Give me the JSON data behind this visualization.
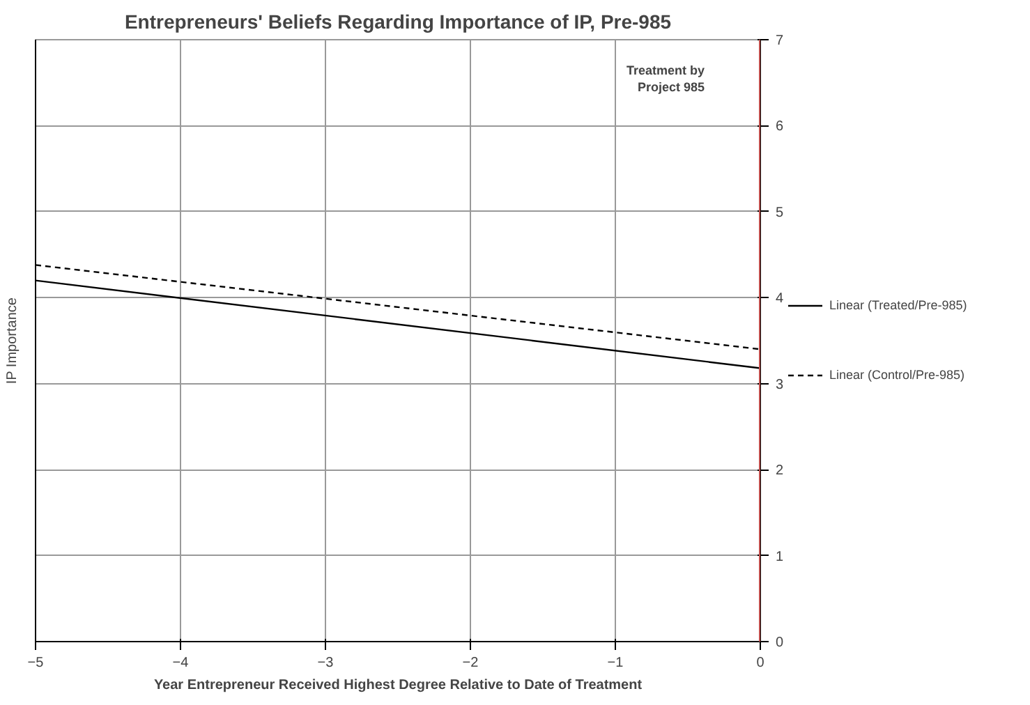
{
  "chart_data": {
    "type": "line",
    "title": "Entrepreneurs' Beliefs Regarding Importance of IP, Pre-985",
    "xlabel": "Year Entrepreneur Received Highest Degree Relative to Date of Treatment",
    "ylabel": "IP Importance",
    "x": [
      -5,
      0
    ],
    "series": [
      {
        "name": "Linear (Treated/Pre-985)",
        "color": "#000000",
        "values": [
          4.2,
          3.18
        ],
        "line_style": "solid"
      },
      {
        "name": "Linear (Control/Pre-985)",
        "color": "#000000",
        "values": [
          4.38,
          3.4
        ],
        "line_style": "dashed"
      }
    ],
    "xlim": [
      -5,
      0
    ],
    "ylim": [
      0,
      7
    ],
    "xticks": [
      -5,
      -4,
      -3,
      -2,
      -1,
      0
    ],
    "yticks": [
      0,
      1,
      2,
      3,
      4,
      5,
      6,
      7
    ],
    "ref_lines": [
      {
        "axis": "x",
        "value": 0,
        "color": "#c0504d"
      }
    ],
    "annotations": [
      "Treatment by Project 985"
    ],
    "grid": true,
    "legend": "right",
    "marker": "none"
  }
}
